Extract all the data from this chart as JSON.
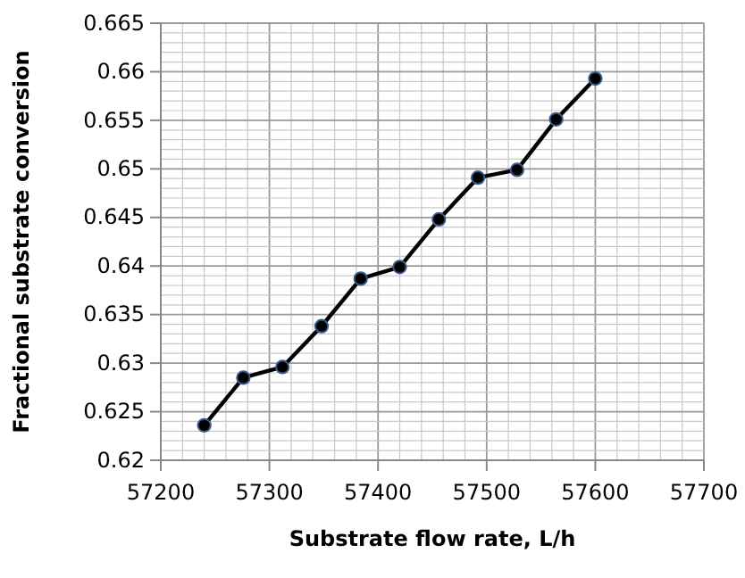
{
  "chart_data": {
    "type": "line",
    "xlabel": "Substrate flow rate, L/h",
    "ylabel": "Fractional substrate conversion",
    "x": [
      57240,
      57276,
      57312,
      57348,
      57384,
      57420,
      57456,
      57492,
      57528,
      57564,
      57600
    ],
    "series": [
      {
        "color": "#000000",
        "values": [
          0.6236,
          0.6285,
          0.6296,
          0.6338,
          0.6387,
          0.6399,
          0.6448,
          0.6491,
          0.6499,
          0.6551,
          0.6593
        ]
      }
    ],
    "xlim": [
      57200,
      57700
    ],
    "xticks": [
      57200,
      57300,
      57400,
      57500,
      57600,
      57700
    ],
    "ylim": [
      0.62,
      0.665
    ],
    "yticks": [
      0.62,
      0.625,
      0.63,
      0.635,
      0.64,
      0.645,
      0.65,
      0.655,
      0.66,
      0.665
    ],
    "grid": true,
    "marker": "circle",
    "line_style": "solid"
  }
}
